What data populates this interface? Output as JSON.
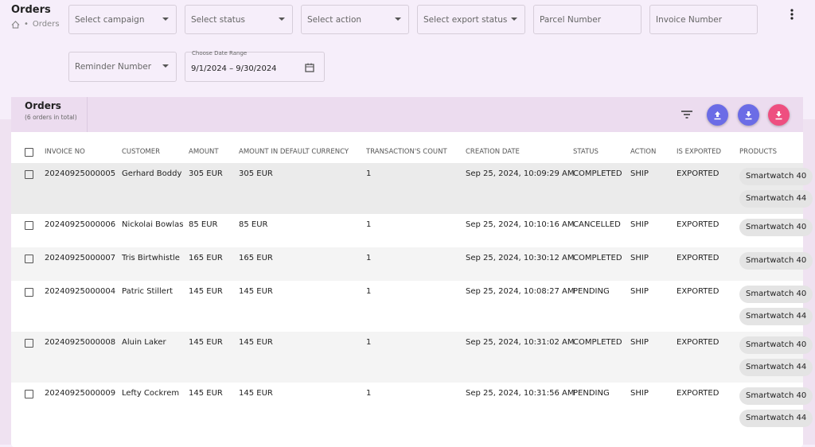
{
  "header": {
    "title": "Orders",
    "breadcrumb": "Orders"
  },
  "filters": [
    "Select campaign",
    "Select status",
    "Select action",
    "Select export status",
    "Parcel Number",
    "Invoice Number",
    "Reminder Number"
  ],
  "date_range": {
    "label": "Choose Date Range",
    "value": "9/1/2024 – 9/30/2024"
  },
  "card": {
    "title": "Orders",
    "subtitle": "(6 orders in total)"
  },
  "table": {
    "columns": [
      "INVOICE NO",
      "CUSTOMER",
      "AMOUNT",
      "AMOUNT IN DEFAULT CURRENCY",
      "TRANSACTION'S COUNT",
      "CREATION DATE",
      "STATUS",
      "ACTION",
      "IS EXPORTED",
      "PRODUCTS"
    ],
    "rows": [
      {
        "cells": [
          "20240925000005",
          "Gerhard Boddy",
          "305 EUR",
          "305 EUR",
          "1",
          "Sep 25, 2024, 10:09:29 AM",
          "COMPLETED",
          "SHIP",
          "EXPORTED"
        ],
        "products": [
          "Smartwatch 40",
          "Smartwatch 44"
        ]
      },
      {
        "cells": [
          "20240925000006",
          "Nickolai Bowlas",
          "85 EUR",
          "85 EUR",
          "1",
          "Sep 25, 2024, 10:10:16 AM",
          "CANCELLED",
          "SHIP",
          "EXPORTED"
        ],
        "products": [
          "Smartwatch 40"
        ]
      },
      {
        "cells": [
          "20240925000007",
          "Tris Birtwhistle",
          "165 EUR",
          "165 EUR",
          "1",
          "Sep 25, 2024, 10:30:12 AM",
          "COMPLETED",
          "SHIP",
          "EXPORTED"
        ],
        "products": [
          "Smartwatch 40"
        ]
      },
      {
        "cells": [
          "20240925000004",
          "Patric Stillert",
          "145 EUR",
          "145 EUR",
          "1",
          "Sep 25, 2024, 10:08:27 AM",
          "PENDING",
          "SHIP",
          "EXPORTED"
        ],
        "products": [
          "Smartwatch 40",
          "Smartwatch 44"
        ]
      },
      {
        "cells": [
          "20240925000008",
          "Aluin Laker",
          "145 EUR",
          "145 EUR",
          "1",
          "Sep 25, 2024, 10:31:02 AM",
          "COMPLETED",
          "SHIP",
          "EXPORTED"
        ],
        "products": [
          "Smartwatch 40",
          "Smartwatch 44"
        ]
      },
      {
        "cells": [
          "20240925000009",
          "Lefty Cockrem",
          "145 EUR",
          "145 EUR",
          "1",
          "Sep 25, 2024, 10:31:56 AM",
          "PENDING",
          "SHIP",
          "EXPORTED"
        ],
        "products": [
          "Smartwatch 40",
          "Smartwatch 44"
        ]
      }
    ]
  }
}
